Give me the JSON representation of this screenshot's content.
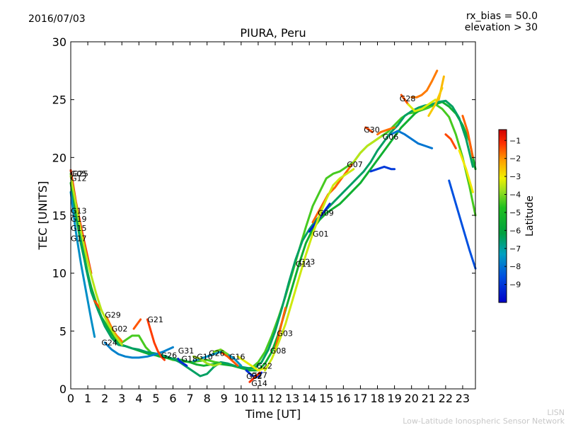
{
  "header": {
    "date": "2016/07/03",
    "rx_bias": "rx_bias = 50.0",
    "elevation": "elevation > 30"
  },
  "footer": {
    "line1": "LISN",
    "line2": "Low-Latitude Ionospheric Sensor Network"
  },
  "colorbar": {
    "label": "Latitude",
    "ticks": [
      "−1",
      "−2",
      "−3",
      "−4",
      "−5",
      "−6",
      "−7",
      "−8",
      "−9"
    ],
    "tick_values": [
      -1,
      -2,
      -3,
      -4,
      -5,
      -6,
      -7,
      -8,
      -9
    ],
    "range": [
      -10.0,
      -0.4
    ]
  },
  "chart_data": {
    "type": "scatter",
    "title": "PIURA, Peru",
    "xlabel": "Time [UT]",
    "ylabel": "TEC [UNITS]",
    "xlim": [
      0,
      23.75
    ],
    "ylim": [
      0,
      30
    ],
    "xticks": [
      0,
      1,
      2,
      3,
      4,
      5,
      6,
      7,
      8,
      9,
      10,
      11,
      12,
      13,
      14,
      15,
      16,
      17,
      18,
      19,
      20,
      21,
      22,
      23
    ],
    "yticks": [
      0,
      5,
      10,
      15,
      20,
      25,
      30
    ],
    "grid": false,
    "series": [
      {
        "lat": -4.5,
        "x": [
          0.0,
          0.2,
          0.4,
          0.6,
          0.8,
          1.0,
          1.2,
          1.5,
          1.8,
          2.2,
          2.6,
          3.0,
          3.3,
          3.6,
          4.0,
          4.4,
          4.8,
          5.2,
          5.6,
          6.0,
          6.5,
          7.0,
          7.5,
          8.0,
          8.5,
          9.0,
          9.5,
          10.0,
          10.3,
          10.6,
          11.0,
          11.4,
          11.8,
          12.2,
          12.6,
          13.0,
          13.4,
          13.8,
          14.2,
          14.6,
          15.0,
          15.4,
          15.8,
          16.2,
          16.6,
          17.0,
          17.4,
          17.8,
          18.2,
          18.6,
          19.0,
          19.4,
          19.8,
          20.2,
          20.6,
          21.0,
          21.4,
          21.8,
          22.2,
          22.6,
          23.0,
          23.4,
          23.75
        ],
        "y": [
          18.6,
          17.0,
          15.0,
          13.0,
          11.5,
          10.0,
          8.6,
          7.2,
          6.2,
          5.3,
          4.5,
          4.0,
          4.3,
          4.6,
          4.6,
          3.6,
          3.0,
          2.8,
          2.7,
          2.5,
          2.4,
          2.3,
          2.4,
          2.5,
          2.3,
          2.2,
          2.0,
          1.8,
          1.7,
          1.8,
          2.3,
          3.2,
          4.6,
          6.2,
          8.0,
          10.0,
          12.0,
          14.0,
          15.8,
          17.0,
          18.2,
          18.6,
          18.8,
          19.2,
          19.6,
          20.4,
          21.0,
          21.4,
          21.8,
          22.2,
          22.8,
          23.4,
          23.8,
          23.9,
          24.1,
          24.3,
          24.6,
          24.2,
          23.5,
          22.0,
          20.0,
          17.5,
          15.0
        ]
      },
      {
        "lat": -5.5,
        "x": [
          0.0,
          0.3,
          0.6,
          0.9,
          1.2,
          1.5,
          1.8,
          2.2,
          2.6,
          3.0,
          3.4,
          3.8,
          4.2,
          4.6,
          5.0,
          5.5,
          6.0,
          6.5,
          7.0,
          7.4,
          7.8,
          8.2,
          8.6,
          9.0,
          9.5,
          10.0,
          10.5,
          11.0,
          11.4,
          11.8,
          12.2,
          12.6,
          13.0,
          13.4,
          13.8,
          14.2,
          14.6,
          15.0,
          15.4,
          15.8,
          16.2,
          16.6,
          17.0,
          17.4,
          17.8,
          18.2,
          18.6,
          19.0,
          19.4,
          19.8,
          20.2,
          20.6,
          21.0,
          21.4,
          21.8,
          22.2,
          22.6,
          23.0,
          23.4,
          23.75
        ],
        "y": [
          17.8,
          15.0,
          12.5,
          10.5,
          8.8,
          7.4,
          6.2,
          5.2,
          4.3,
          3.8,
          3.6,
          3.4,
          3.2,
          3.0,
          2.9,
          2.7,
          2.6,
          2.5,
          2.3,
          2.1,
          2.0,
          2.1,
          2.2,
          2.1,
          2.0,
          1.8,
          1.6,
          1.6,
          2.2,
          3.2,
          4.8,
          6.8,
          8.8,
          10.8,
          12.6,
          13.8,
          14.6,
          15.2,
          15.6,
          16.0,
          16.6,
          17.2,
          17.8,
          18.6,
          19.4,
          20.2,
          21.0,
          21.8,
          22.6,
          23.2,
          23.8,
          24.2,
          24.5,
          24.6,
          24.8,
          24.4,
          23.8,
          22.8,
          21.4,
          19.0
        ]
      },
      {
        "lat": -6.5,
        "x": [
          0.0,
          0.3,
          0.6,
          0.9,
          1.2,
          1.6,
          2.0,
          2.4,
          2.8,
          3.2,
          3.6,
          4.0,
          4.4,
          4.8,
          5.2,
          5.6,
          6.0,
          6.4,
          6.8,
          7.2,
          7.6,
          8.0,
          8.4,
          8.8,
          9.2,
          9.6,
          10.0,
          10.4,
          10.8,
          11.2,
          11.6,
          12.0,
          12.4,
          12.8,
          13.2,
          13.6,
          14.0,
          14.4,
          14.8,
          15.2,
          15.6,
          16.0,
          16.4,
          16.8,
          17.2,
          17.6,
          18.0,
          18.4,
          18.8,
          19.2,
          19.6,
          20.0,
          20.4,
          20.8,
          21.2,
          21.6,
          22.0,
          22.4,
          22.8,
          23.2,
          23.6
        ],
        "y": [
          18.9,
          15.8,
          12.8,
          10.4,
          8.4,
          6.8,
          5.4,
          4.4,
          3.8,
          3.7,
          3.5,
          3.4,
          3.2,
          3.1,
          3.0,
          2.8,
          2.6,
          2.3,
          1.9,
          1.5,
          1.1,
          1.3,
          1.9,
          2.3,
          2.2,
          2.0,
          1.9,
          1.8,
          1.8,
          2.3,
          3.4,
          5.0,
          7.0,
          9.2,
          11.2,
          12.8,
          13.8,
          14.6,
          15.2,
          15.8,
          16.4,
          17.0,
          17.6,
          18.2,
          18.8,
          19.6,
          20.6,
          21.4,
          22.2,
          22.8,
          23.6,
          24.0,
          24.3,
          24.5,
          24.6,
          24.8,
          24.9,
          24.4,
          23.4,
          21.6,
          19.2
        ]
      },
      {
        "lat": -7.6,
        "x": [
          0.0,
          0.3,
          0.6,
          0.9,
          1.2,
          1.4
        ],
        "y": [
          17.0,
          13.6,
          10.8,
          8.4,
          6.0,
          4.5
        ]
      },
      {
        "lat": -7.8,
        "x": [
          2.0,
          2.4,
          2.8,
          3.2,
          3.6,
          4.0,
          4.5,
          5.0,
          5.4,
          5.7,
          6.0
        ],
        "y": [
          4.0,
          3.4,
          3.0,
          2.8,
          2.7,
          2.7,
          2.8,
          3.0,
          3.2,
          3.4,
          3.6
        ]
      },
      {
        "lat": -7.5,
        "x": [
          7.2,
          7.6,
          8.0,
          8.4,
          8.8,
          9.2,
          9.6,
          10.0
        ],
        "y": [
          2.4,
          2.6,
          2.8,
          3.0,
          3.2,
          3.0,
          2.6,
          2.0
        ]
      },
      {
        "lat": -9.3,
        "x": [
          6.3,
          6.4,
          6.6,
          6.8
        ],
        "y": [
          2.6,
          2.4,
          2.2,
          2.0
        ]
      },
      {
        "lat": -8.0,
        "x": [
          18.8,
          19.2,
          19.6,
          20.0,
          20.4,
          20.8,
          21.2
        ],
        "y": [
          22.0,
          22.3,
          22.0,
          21.6,
          21.2,
          21.0,
          20.8
        ]
      },
      {
        "lat": -9.0,
        "x": [
          17.6,
          18.0,
          18.4,
          18.8,
          19.0
        ],
        "y": [
          18.8,
          19.0,
          19.2,
          19.0,
          19.0
        ]
      },
      {
        "lat": -9.4,
        "x": [
          14.0,
          14.3,
          14.6,
          14.9,
          15.2
        ],
        "y": [
          13.6,
          14.2,
          14.8,
          15.4,
          16.0
        ]
      },
      {
        "lat": -9.2,
        "x": [
          10.3,
          10.6,
          10.9,
          11.2
        ],
        "y": [
          1.6,
          1.2,
          1.0,
          1.4
        ]
      },
      {
        "lat": -8.6,
        "x": [
          22.2,
          22.6,
          23.0,
          23.4,
          23.75
        ],
        "y": [
          18.0,
          16.0,
          14.0,
          12.0,
          10.4
        ]
      },
      {
        "lat": -1.2,
        "x": [
          0.0,
          0.3,
          0.6,
          0.9,
          1.2
        ],
        "y": [
          18.9,
          16.2,
          14.0,
          12.0,
          10.0
        ]
      },
      {
        "lat": -1.4,
        "x": [
          1.4,
          1.6,
          1.8
        ],
        "y": [
          7.6,
          7.2,
          6.8
        ]
      },
      {
        "lat": -1.8,
        "x": [
          2.1,
          2.3,
          2.5,
          2.7,
          2.9,
          3.0
        ],
        "y": [
          6.2,
          5.6,
          5.0,
          4.6,
          4.3,
          4.1
        ]
      },
      {
        "lat": -1.5,
        "x": [
          3.7,
          3.9,
          4.1
        ],
        "y": [
          5.2,
          5.6,
          6.0
        ]
      },
      {
        "lat": -1.3,
        "x": [
          4.5,
          4.7,
          4.9,
          5.1,
          5.3,
          5.5
        ],
        "y": [
          6.0,
          5.0,
          4.0,
          3.3,
          2.8,
          2.5
        ]
      },
      {
        "lat": -1.5,
        "x": [
          8.9,
          9.2,
          9.5,
          9.8
        ],
        "y": [
          3.1,
          2.8,
          2.4,
          2.0
        ]
      },
      {
        "lat": -1.2,
        "x": [
          10.5,
          10.8,
          11.1
        ],
        "y": [
          0.6,
          1.0,
          1.4
        ]
      },
      {
        "lat": -1.6,
        "x": [
          12.0,
          12.2,
          12.4,
          12.6
        ],
        "y": [
          3.4,
          4.6,
          5.8,
          7.0
        ]
      },
      {
        "lat": -1.6,
        "x": [
          14.2,
          14.5,
          14.8,
          15.1,
          15.5,
          16.0,
          16.5
        ],
        "y": [
          14.4,
          15.2,
          16.0,
          16.8,
          17.4,
          18.4,
          19.4
        ]
      },
      {
        "lat": -1.4,
        "x": [
          17.3,
          17.5,
          17.7
        ],
        "y": [
          22.6,
          22.4,
          22.2
        ]
      },
      {
        "lat": -1.7,
        "x": [
          18.0,
          18.2,
          18.6,
          19.0
        ],
        "y": [
          22.0,
          22.2,
          22.4,
          22.6
        ]
      },
      {
        "lat": -1.5,
        "x": [
          19.4,
          19.6,
          19.8
        ],
        "y": [
          25.4,
          25.0,
          24.6
        ]
      },
      {
        "lat": -1.8,
        "x": [
          20.0,
          20.3,
          20.6,
          20.9,
          21.2,
          21.5
        ],
        "y": [
          25.2,
          25.2,
          25.4,
          25.8,
          26.6,
          27.5
        ]
      },
      {
        "lat": -2.4,
        "x": [
          21.6,
          21.9
        ],
        "y": [
          25.0,
          27.0
        ]
      },
      {
        "lat": -1.4,
        "x": [
          22.0,
          22.3,
          22.6
        ],
        "y": [
          22.0,
          21.6,
          20.8
        ]
      },
      {
        "lat": -1.6,
        "x": [
          23.0,
          23.3,
          23.6
        ],
        "y": [
          23.6,
          22.2,
          20.0
        ]
      },
      {
        "lat": -3.0,
        "x": [
          22.8,
          23.2,
          23.6
        ],
        "y": [
          20.6,
          19.0,
          17.0
        ]
      },
      {
        "lat": -3.6,
        "x": [
          0.0,
          0.3,
          0.6,
          0.9,
          1.2,
          1.5,
          1.8,
          2.2,
          2.6,
          3.0
        ],
        "y": [
          18.4,
          16.0,
          13.6,
          11.6,
          9.8,
          8.2,
          6.8,
          5.6,
          4.6,
          3.8
        ]
      },
      {
        "lat": -3.8,
        "x": [
          7.2,
          7.6,
          8.0,
          8.4,
          8.8
        ],
        "y": [
          2.8,
          2.6,
          2.2,
          2.0,
          2.2
        ]
      },
      {
        "lat": -3.2,
        "x": [
          9.8,
          10.2,
          10.6,
          11.0,
          11.4
        ],
        "y": [
          2.8,
          2.4,
          2.0,
          1.6,
          1.8
        ]
      },
      {
        "lat": -3.4,
        "x": [
          11.4,
          11.8,
          12.2,
          12.6,
          13.0,
          13.4,
          13.8,
          14.2,
          14.6,
          15.0,
          15.4,
          15.8,
          16.2,
          16.6
        ],
        "y": [
          1.6,
          2.6,
          4.0,
          5.6,
          7.6,
          9.6,
          11.6,
          13.4,
          15.0,
          16.4,
          17.6,
          18.2,
          18.6,
          19.0
        ]
      },
      {
        "lat": -3.6,
        "x": [
          16.6,
          17.0,
          17.4,
          17.8,
          18.2
        ],
        "y": [
          19.6,
          20.4,
          21.0,
          21.4,
          21.8
        ]
      },
      {
        "lat": -3.3,
        "x": [
          19.8,
          20.2,
          20.6,
          21.0,
          21.4
        ],
        "y": [
          24.6,
          24.0,
          24.2,
          24.6,
          25.0
        ]
      },
      {
        "lat": -2.6,
        "x": [
          21.0,
          21.4,
          21.8
        ],
        "y": [
          23.6,
          24.6,
          26.0
        ]
      },
      {
        "lat": -4.2,
        "x": [
          8.4,
          8.8,
          9.2
        ],
        "y": [
          3.2,
          3.4,
          3.0
        ]
      }
    ],
    "labels": [
      {
        "text": "G05",
        "x": 0.0,
        "y": 18.6
      },
      {
        "text": "G25",
        "x": 0.1,
        "y": 18.6
      },
      {
        "text": "G12",
        "x": 0.0,
        "y": 18.2
      },
      {
        "text": "G13",
        "x": 0.0,
        "y": 15.4
      },
      {
        "text": "G19",
        "x": 0.0,
        "y": 14.7
      },
      {
        "text": "G15",
        "x": 0.0,
        "y": 13.9
      },
      {
        "text": "G17",
        "x": 0.0,
        "y": 13.0
      },
      {
        "text": "G29",
        "x": 2.0,
        "y": 6.4
      },
      {
        "text": "G02",
        "x": 2.4,
        "y": 5.2
      },
      {
        "text": "G24",
        "x": 1.8,
        "y": 4.0
      },
      {
        "text": "G21",
        "x": 4.5,
        "y": 6.0
      },
      {
        "text": "G31",
        "x": 6.3,
        "y": 3.3
      },
      {
        "text": "G26",
        "x": 5.3,
        "y": 2.9
      },
      {
        "text": "G18",
        "x": 6.5,
        "y": 2.6
      },
      {
        "text": "G10",
        "x": 7.4,
        "y": 2.8
      },
      {
        "text": "G26",
        "x": 8.1,
        "y": 3.1
      },
      {
        "text": "G16",
        "x": 9.3,
        "y": 2.8
      },
      {
        "text": "G32",
        "x": 10.3,
        "y": 1.1
      },
      {
        "text": "G27",
        "x": 10.6,
        "y": 1.2
      },
      {
        "text": "G22",
        "x": 10.9,
        "y": 2.0
      },
      {
        "text": "G14",
        "x": 10.6,
        "y": 0.5
      },
      {
        "text": "G08",
        "x": 11.7,
        "y": 3.3
      },
      {
        "text": "G03",
        "x": 12.1,
        "y": 4.8
      },
      {
        "text": "G11",
        "x": 13.2,
        "y": 10.8
      },
      {
        "text": "G23",
        "x": 13.4,
        "y": 11.0
      },
      {
        "text": "G01",
        "x": 14.2,
        "y": 13.4
      },
      {
        "text": "G09",
        "x": 14.5,
        "y": 15.2
      },
      {
        "text": "G07",
        "x": 16.2,
        "y": 19.4
      },
      {
        "text": "G30",
        "x": 17.2,
        "y": 22.4
      },
      {
        "text": "G06",
        "x": 18.3,
        "y": 21.8
      },
      {
        "text": "G28",
        "x": 19.3,
        "y": 25.1
      }
    ]
  }
}
